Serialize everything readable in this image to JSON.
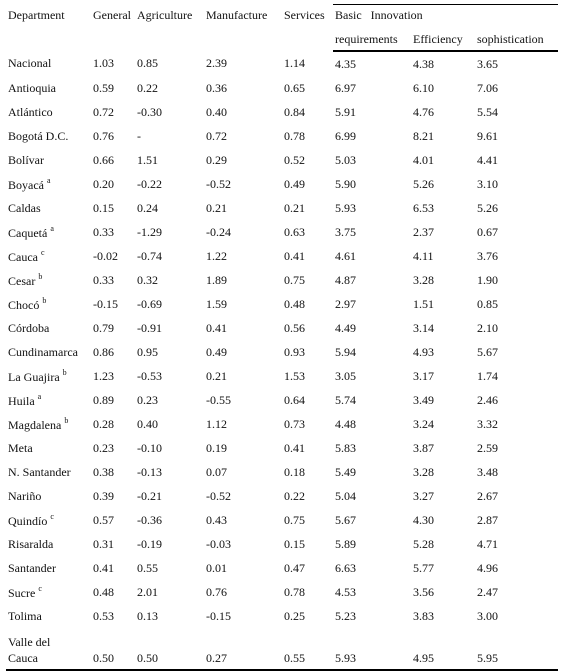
{
  "header": {
    "department": "Department",
    "columns": [
      "General",
      "Agriculture",
      "Manufacture",
      "Services"
    ],
    "group_header": "Basic Innovation",
    "subcolumns": [
      "requirements",
      "Efficiency",
      "sophistication"
    ]
  },
  "table": {
    "rows": [
      {
        "department": "Nacional",
        "values": [
          "1.03",
          "0.85",
          "2.39",
          "1.14",
          "4.35",
          "4.38",
          "3.65"
        ]
      },
      {
        "department": "Antioquia",
        "values": [
          "0.59",
          "0.22",
          "0.36",
          "0.65",
          "6.97",
          "6.10",
          "7.06"
        ]
      },
      {
        "department": "Atlántico",
        "values": [
          "0.72",
          "-0.30",
          "0.40",
          "0.84",
          "5.91",
          "4.76",
          "5.54"
        ]
      },
      {
        "department": "Bogotá D.C.",
        "values": [
          "0.76",
          "-",
          "0.72",
          "0.78",
          "6.99",
          "8.21",
          "9.61"
        ]
      },
      {
        "department": "Bolívar",
        "values": [
          "0.66",
          "1.51",
          "0.29",
          "0.52",
          "5.03",
          "4.01",
          "4.41"
        ]
      },
      {
        "department": "Boyacá",
        "note": "a",
        "values": [
          "0.20",
          "-0.22",
          "-0.52",
          "0.49",
          "5.90",
          "5.26",
          "3.10"
        ]
      },
      {
        "department": "Caldas",
        "values": [
          "0.15",
          "0.24",
          "0.21",
          "0.21",
          "5.93",
          "6.53",
          "5.26"
        ]
      },
      {
        "department": "Caquetá",
        "note": "a",
        "values": [
          "0.33",
          "-1.29",
          "-0.24",
          "0.63",
          "3.75",
          "2.37",
          "0.67"
        ]
      },
      {
        "department": "Cauca",
        "note": "c",
        "values": [
          "-0.02",
          "-0.74",
          "1.22",
          "0.41",
          "4.61",
          "4.11",
          "3.76"
        ]
      },
      {
        "department": "Cesar",
        "note": "b",
        "values": [
          "0.33",
          "0.32",
          "1.89",
          "0.75",
          "4.87",
          "3.28",
          "1.90"
        ]
      },
      {
        "department": "Chocó",
        "note": "b",
        "values": [
          "-0.15",
          "-0.69",
          "1.59",
          "0.48",
          "2.97",
          "1.51",
          "0.85"
        ]
      },
      {
        "department": "Córdoba",
        "values": [
          "0.79",
          "-0.91",
          "0.41",
          "0.56",
          "4.49",
          "3.14",
          "2.10"
        ]
      },
      {
        "department": "Cundinamarca",
        "values": [
          "0.86",
          "0.95",
          "0.49",
          "0.93",
          "5.94",
          "4.93",
          "5.67"
        ]
      },
      {
        "department": "La Guajira",
        "note": "b",
        "values": [
          "1.23",
          "-0.53",
          "0.21",
          "1.53",
          "3.05",
          "3.17",
          "1.74"
        ]
      },
      {
        "department": "Huila",
        "note": "a",
        "values": [
          "0.89",
          "0.23",
          "-0.55",
          "0.64",
          "5.74",
          "3.49",
          "2.46"
        ]
      },
      {
        "department": "Magdalena",
        "note": "b",
        "values": [
          "0.28",
          "0.40",
          "1.12",
          "0.73",
          "4.48",
          "3.24",
          "3.32"
        ]
      },
      {
        "department": "Meta",
        "values": [
          "0.23",
          "-0.10",
          "0.19",
          "0.41",
          "5.83",
          "3.87",
          "2.59"
        ]
      },
      {
        "department": "N. Santander",
        "values": [
          "0.38",
          "-0.13",
          "0.07",
          "0.18",
          "5.49",
          "3.28",
          "3.48"
        ]
      },
      {
        "department": "Nariño",
        "values": [
          "0.39",
          "-0.21",
          "-0.52",
          "0.22",
          "5.04",
          "3.27",
          "2.67"
        ]
      },
      {
        "department": "Quindío",
        "note": "c",
        "values": [
          "0.57",
          "-0.36",
          "0.43",
          "0.75",
          "5.67",
          "4.30",
          "2.87"
        ]
      },
      {
        "department": "Risaralda",
        "values": [
          "0.31",
          "-0.19",
          "-0.03",
          "0.15",
          "5.89",
          "5.28",
          "4.71"
        ]
      },
      {
        "department": "Santander",
        "values": [
          "0.41",
          "0.55",
          "0.01",
          "0.47",
          "6.63",
          "5.77",
          "4.96"
        ]
      },
      {
        "department": "Sucre",
        "note": "c",
        "values": [
          "0.48",
          "2.01",
          "0.76",
          "0.78",
          "4.53",
          "3.56",
          "2.47"
        ]
      },
      {
        "department": "Tolima",
        "values": [
          "0.53",
          "0.13",
          "-0.15",
          "0.25",
          "5.23",
          "3.83",
          "3.00"
        ]
      },
      {
        "department": "Valle del Cauca",
        "values": [
          "0.50",
          "0.50",
          "0.27",
          "0.55",
          "5.93",
          "4.95",
          "5.95"
        ]
      }
    ]
  }
}
